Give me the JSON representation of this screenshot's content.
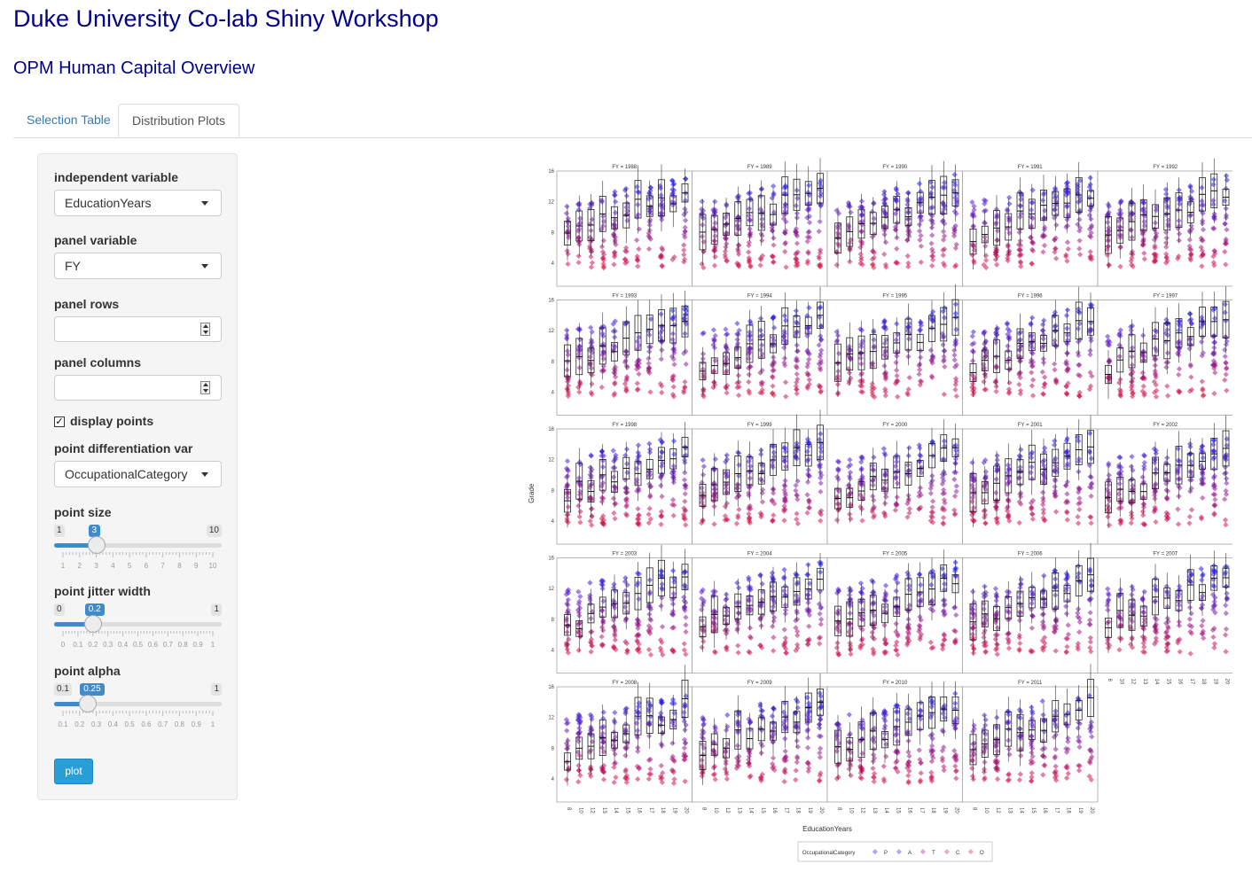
{
  "header": {
    "title": "Duke University Co-lab Shiny Workshop",
    "subtitle": "OPM Human Capital Overview"
  },
  "tabs": [
    {
      "label": "Selection Table",
      "active": false
    },
    {
      "label": "Distribution Plots",
      "active": true
    }
  ],
  "sidebar": {
    "independent_variable": {
      "label": "independent variable",
      "value": "EducationYears"
    },
    "panel_variable": {
      "label": "panel variable",
      "value": "FY"
    },
    "panel_rows": {
      "label": "panel rows",
      "value": ""
    },
    "panel_columns": {
      "label": "panel columns",
      "value": ""
    },
    "display_points": {
      "label": "display points",
      "checked": true
    },
    "point_diff_var": {
      "label": "point differentiation var",
      "value": "OccupationalCategory"
    },
    "point_size": {
      "label": "point size",
      "min": "1",
      "max": "10",
      "value": "3",
      "fraction": 0.222,
      "ticks": [
        "1",
        "2",
        "3",
        "4",
        "5",
        "6",
        "7",
        "8",
        "9",
        "10"
      ]
    },
    "point_jitter": {
      "label": "point jitter width",
      "min": "0",
      "max": "1",
      "value": "0.2",
      "fraction": 0.2,
      "ticks": [
        "0",
        "0.1",
        "0.2",
        "0.3",
        "0.4",
        "0.5",
        "0.6",
        "0.7",
        "0.8",
        "0.9",
        "1"
      ]
    },
    "point_alpha": {
      "label": "point alpha",
      "min": "0.1",
      "max": "1",
      "value": "0.25",
      "fraction": 0.167,
      "ticks": [
        "0.1",
        "0.2",
        "0.3",
        "0.4",
        "0.5",
        "0.6",
        "0.7",
        "0.8",
        "0.9",
        "1"
      ]
    },
    "plot_button": "plot"
  },
  "chart_data": {
    "type": "scatter",
    "title": "",
    "xlabel": "EducationYears",
    "ylabel": "Grade",
    "y_ticks": [
      "4",
      "8",
      "12",
      "16"
    ],
    "ylim": [
      1,
      16
    ],
    "x_ticks": [
      "8",
      "10",
      "12",
      "13",
      "14",
      "15",
      "16",
      "17",
      "18",
      "19",
      "20"
    ],
    "panels": [
      "FY = 1988",
      "FY = 1989",
      "FY = 1990",
      "FY = 1991",
      "FY = 1992",
      "FY = 1993",
      "FY = 1994",
      "FY = 1995",
      "FY = 1996",
      "FY = 1997",
      "FY = 1998",
      "FY = 1999",
      "FY = 2000",
      "FY = 2001",
      "FY = 2002",
      "FY = 2003",
      "FY = 2004",
      "FY = 2005",
      "FY = 2006",
      "FY = 2007",
      "FY = 2008",
      "FY = 2009",
      "FY = 2010",
      "FY = 2011"
    ],
    "grid": false,
    "legend": {
      "title": "OccupationalCategory",
      "position": "bottom",
      "items": [
        {
          "label": "P",
          "color": "#7a6ee0"
        },
        {
          "label": "A",
          "color": "#8a6cd8"
        },
        {
          "label": "T",
          "color": "#c76ab4"
        },
        {
          "label": "C",
          "color": "#e0739a"
        },
        {
          "label": "O",
          "color": "#e8758a"
        }
      ]
    },
    "series_colors": {
      "high": "#1a1aff",
      "mid": "#6a1fbf",
      "low": "#d4144a"
    }
  }
}
